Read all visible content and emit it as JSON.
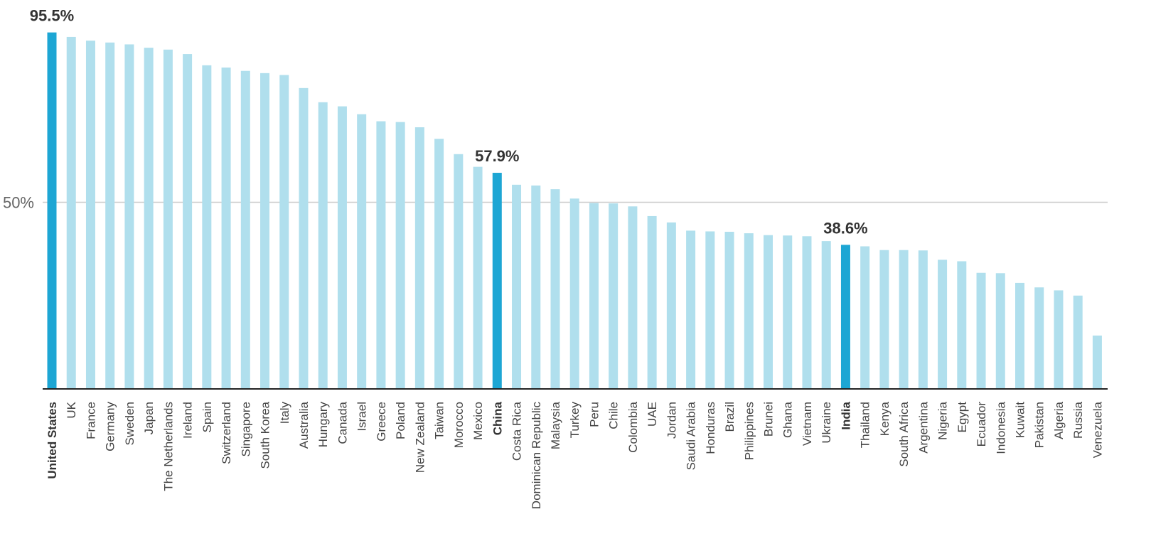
{
  "chart_data": {
    "type": "bar",
    "title": "",
    "xlabel": "",
    "ylabel": "",
    "ylim": [
      0,
      100
    ],
    "y_ticks": [
      {
        "value": 50,
        "label": "50%"
      }
    ],
    "grid": true,
    "legend": "none",
    "colors": {
      "default": "#b0dfed",
      "highlight": "#1da6d4",
      "gridline": "#cccccc",
      "axis": "#222222"
    },
    "categories": [
      "United States",
      "UK",
      "France",
      "Germany",
      "Sweden",
      "Japan",
      "The Netherlands",
      "Ireland",
      "Spain",
      "Switzerland",
      "Singapore",
      "South Korea",
      "Italy",
      "Australia",
      "Hungary",
      "Canada",
      "Israel",
      "Greece",
      "Poland",
      "New Zealand",
      "Taiwan",
      "Morocco",
      "Mexico",
      "China",
      "Costa Rica",
      "Dominican Republic",
      "Malaysia",
      "Turkey",
      "Peru",
      "Chile",
      "Colombia",
      "UAE",
      "Jordan",
      "Saudi Arabia",
      "Honduras",
      "Brazil",
      "Philippines",
      "Brunei",
      "Ghana",
      "Vietnam",
      "Ukraine",
      "India",
      "Thailand",
      "Kenya",
      "South Africa",
      "Argentina",
      "Nigeria",
      "Egypt",
      "Ecuador",
      "Indonesia",
      "Kuwait",
      "Pakistan",
      "Algeria",
      "Russia",
      "Venezuela"
    ],
    "values": [
      95.5,
      94.3,
      93.3,
      92.8,
      92.3,
      91.4,
      90.9,
      89.7,
      86.7,
      86.1,
      85.2,
      84.6,
      84.1,
      80.6,
      76.8,
      75.7,
      73.6,
      71.7,
      71.5,
      70.1,
      67.0,
      62.9,
      59.5,
      57.9,
      54.7,
      54.5,
      53.5,
      51.0,
      49.8,
      49.7,
      48.9,
      46.3,
      44.6,
      42.4,
      42.2,
      42.1,
      41.7,
      41.2,
      41.1,
      40.9,
      39.6,
      38.6,
      38.2,
      37.2,
      37.2,
      37.1,
      34.6,
      34.2,
      31.1,
      31.0,
      28.4,
      27.2,
      26.4,
      25.0,
      14.3
    ],
    "highlighted": [
      "United States",
      "China",
      "India"
    ],
    "annotations": [
      {
        "category": "United States",
        "label": "95.5%"
      },
      {
        "category": "China",
        "label": "57.9%"
      },
      {
        "category": "India",
        "label": "38.6%"
      }
    ]
  }
}
